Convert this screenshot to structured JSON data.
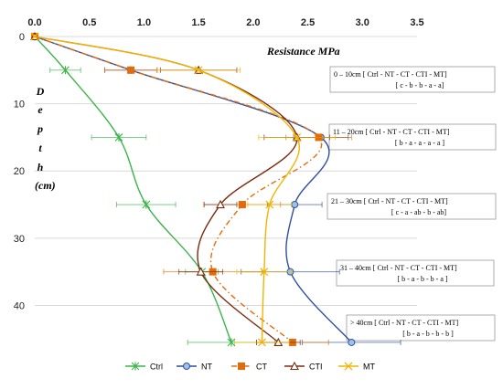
{
  "chart_data": {
    "type": "line",
    "x_title": "Resistance MPa",
    "y_title": "D e p t h (cm)",
    "y_title_letters": [
      "D",
      "e",
      "p",
      "t",
      "h",
      "(cm)"
    ],
    "x_ticks": [
      "0.0",
      "0.5",
      "1.0",
      "1.5",
      "2.0",
      "2.5",
      "3.0",
      "3.5"
    ],
    "y_ticks": [
      "0",
      "10",
      "20",
      "30",
      "40"
    ],
    "xlim": [
      0,
      3.5
    ],
    "ylim": [
      0,
      47
    ],
    "x_axis_position": "top",
    "y_axis_inverted": true,
    "grid": "horizontal",
    "legend_position": "bottom",
    "series": [
      {
        "name": "Ctrl",
        "color": "#3bb44a",
        "marker": "star",
        "dash": "solid",
        "x": [
          0,
          0.28,
          0.77,
          1.02,
          1.53,
          1.8
        ],
        "y": [
          0,
          5,
          15,
          25,
          35,
          45.5
        ],
        "xerr": [
          0,
          0.14,
          0.25,
          0.27,
          0.15,
          0.4
        ]
      },
      {
        "name": "NT",
        "color": "#2e4fa0",
        "marker": "circle",
        "dash": "solid",
        "x": [
          0,
          0.88,
          2.62,
          2.38,
          2.34,
          2.9
        ],
        "y": [
          0,
          5,
          15,
          25,
          35,
          45.5
        ],
        "xerr": [
          0,
          0.24,
          0.25,
          0.25,
          0.45,
          0.45
        ]
      },
      {
        "name": "CT",
        "color": "#e36c0a",
        "marker": "square",
        "dash": "dashdot",
        "x": [
          0,
          0.88,
          2.6,
          1.9,
          1.63,
          2.36
        ],
        "y": [
          0,
          5,
          15,
          25,
          35,
          45.5
        ],
        "xerr": [
          0,
          0.24,
          0.3,
          0.35,
          0.45,
          0.33
        ]
      },
      {
        "name": "CTI",
        "color": "#7b2c10",
        "marker": "triangle",
        "dash": "solid",
        "x": [
          0,
          1.5,
          2.4,
          1.7,
          1.52,
          2.23
        ],
        "y": [
          0,
          5,
          15,
          25,
          35,
          45.5
        ],
        "xerr": [
          0,
          0.35,
          0.3,
          0.15,
          0.2,
          0.2
        ]
      },
      {
        "name": "MT",
        "color": "#f4b300",
        "marker": "x",
        "dash": "solid",
        "x": [
          0,
          1.5,
          2.4,
          2.15,
          2.1,
          2.08
        ],
        "y": [
          0,
          5,
          15,
          25,
          35,
          45.5
        ],
        "xerr": [
          0,
          0.38,
          0.35,
          0.2,
          0.25,
          0.25
        ]
      }
    ],
    "annotations": [
      {
        "line1": "0 – 10cm [ Ctrl - NT - CT - CTI - MT]",
        "line2": "[ c - b - b - a - a]"
      },
      {
        "line1": "11 – 20cm [ Ctrl - NT - CT - CTI - MT]",
        "line2": "[ b - a - a - a - a ]"
      },
      {
        "line1": "21 – 30cm [ Ctrl - NT - CT - CTI - MT]",
        "line2": "[ c - a - ab - b - ab]"
      },
      {
        "line1": "31 – 40cm [ Ctrl - NT - CT - CTI - MT]",
        "line2": "[ b - a - b - b - a ]"
      },
      {
        "line1": "> 40cm [ Ctrl - NT - CT - CTI - MT]",
        "line2": "[ b - a - b - b - b ]"
      }
    ]
  }
}
